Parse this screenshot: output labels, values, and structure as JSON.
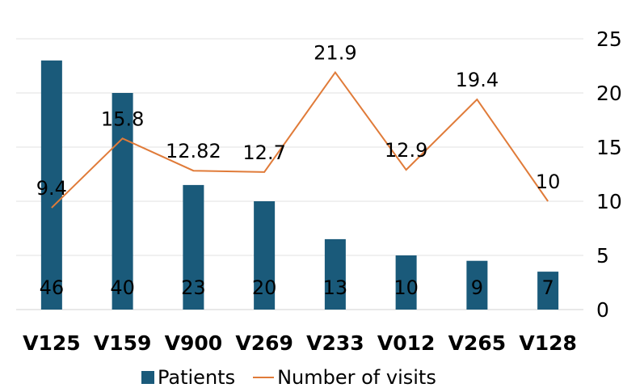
{
  "chart_data": {
    "type": "bar",
    "categories": [
      "V125",
      "V159",
      "V900",
      "V269",
      "V233",
      "V012",
      "V265",
      "V128"
    ],
    "series": [
      {
        "name": "Patients",
        "kind": "bar",
        "axis": "left",
        "values": [
          46,
          40,
          23,
          20,
          13,
          10,
          9,
          7
        ],
        "color": "#1a5a7a"
      },
      {
        "name": "Number of visits",
        "kind": "line",
        "axis": "right",
        "values": [
          9.4,
          15.8,
          12.82,
          12.7,
          21.9,
          12.9,
          19.4,
          10
        ],
        "color": "#e07b39"
      }
    ],
    "y_left": {
      "ylim": [
        0,
        50
      ],
      "ticks_shown": false
    },
    "y_right": {
      "ylim": [
        0,
        25
      ],
      "ticks": [
        "0",
        "5",
        "10",
        "15",
        "20",
        "25"
      ]
    },
    "grid": true,
    "legend": "bottom",
    "title": "",
    "xlabel": "",
    "ylabel": ""
  }
}
